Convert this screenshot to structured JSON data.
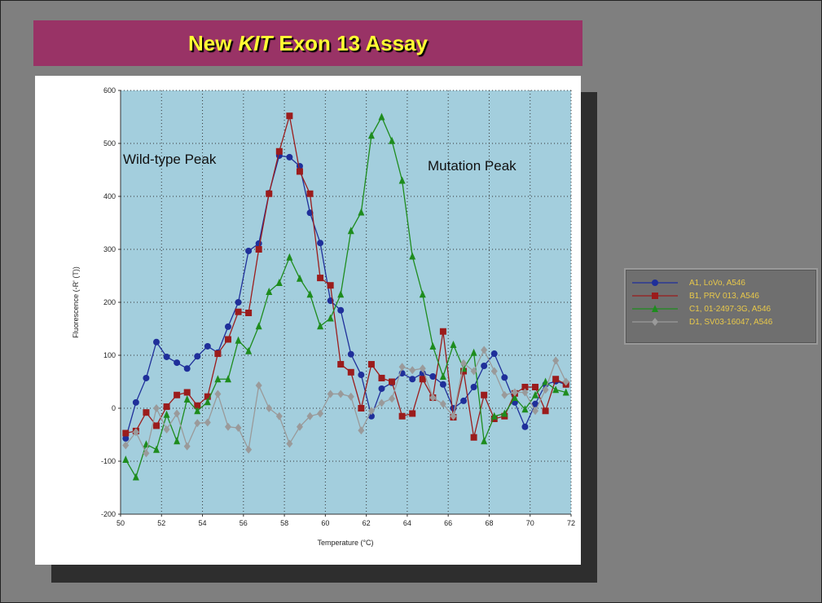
{
  "slide": {
    "title": [
      "New",
      "KIT",
      "Exon 13 Assay"
    ]
  },
  "chart_data": {
    "type": "line",
    "xlabel": "Temperature (°C)",
    "ylabel": "Fluorescence (-R' (T))",
    "annotations": [
      "Wild-type Peak",
      "Mutation Peak"
    ],
    "x": [
      50.25,
      50.75,
      51.25,
      51.75,
      52.25,
      52.75,
      53.25,
      53.75,
      54.25,
      54.75,
      55.25,
      55.75,
      56.25,
      56.75,
      57.25,
      57.75,
      58.25,
      58.75,
      59.25,
      59.75,
      60.25,
      60.75,
      61.25,
      61.75,
      62.25,
      62.75,
      63.25,
      63.75,
      64.25,
      64.75,
      65.25,
      65.75,
      66.25,
      66.75,
      67.25,
      67.75,
      68.25,
      68.75,
      69.25,
      69.75,
      70.25,
      70.75,
      71.25,
      71.75
    ],
    "series": [
      {
        "name": "A1, LoVo, A546",
        "color": "#1f2f9a",
        "marker": "circle",
        "values": [
          -57,
          11,
          57,
          125,
          97,
          86,
          75,
          98,
          117,
          105,
          154,
          200,
          297,
          311,
          406,
          477,
          474,
          457,
          369,
          312,
          203,
          185,
          102,
          63,
          -15,
          37,
          48,
          66,
          55,
          66,
          60,
          45,
          0,
          14,
          40,
          80,
          103,
          58,
          11,
          -35,
          8,
          45,
          51,
          45
        ]
      },
      {
        "name": "B1, PRV 013, A546",
        "color": "#9b1c1c",
        "marker": "square",
        "values": [
          -47,
          -43,
          -8,
          -33,
          3,
          25,
          30,
          5,
          22,
          103,
          130,
          182,
          180,
          300,
          405,
          485,
          552,
          447,
          405,
          246,
          232,
          83,
          68,
          0,
          83,
          57,
          50,
          -15,
          -10,
          55,
          20,
          145,
          -17,
          70,
          -55,
          25,
          -20,
          -15,
          28,
          40,
          40,
          -5,
          55,
          45
        ]
      },
      {
        "name": "C1, 01-2497-3G, A546",
        "color": "#1e8c1e",
        "marker": "triangle",
        "values": [
          -97,
          -130,
          -68,
          -78,
          -12,
          -62,
          17,
          -5,
          12,
          55,
          55,
          128,
          108,
          155,
          220,
          237,
          285,
          245,
          215,
          155,
          170,
          215,
          335,
          370,
          515,
          550,
          505,
          430,
          287,
          215,
          117,
          60,
          120,
          75,
          105,
          -62,
          -15,
          -10,
          20,
          -2,
          25,
          50,
          35,
          30
        ]
      },
      {
        "name": "D1, SV03-16047, A546",
        "color": "#9a9a9a",
        "marker": "diamond",
        "values": [
          -70,
          -45,
          -85,
          0,
          -40,
          -10,
          -72,
          -28,
          -27,
          27,
          -35,
          -37,
          -78,
          43,
          0,
          -15,
          -67,
          -35,
          -15,
          -10,
          27,
          27,
          22,
          -42,
          -5,
          10,
          18,
          78,
          72,
          75,
          20,
          8,
          -15,
          85,
          70,
          110,
          70,
          25,
          30,
          30,
          -5,
          35,
          90,
          50
        ]
      }
    ],
    "xlim": [
      50,
      72
    ],
    "xticks": [
      50,
      52,
      54,
      56,
      58,
      60,
      62,
      64,
      66,
      68,
      70,
      72
    ],
    "ylim": [
      -200,
      600
    ],
    "yticks": [
      -200,
      -100,
      0,
      100,
      200,
      300,
      400,
      500,
      600
    ],
    "grid": true,
    "legend": "right"
  }
}
